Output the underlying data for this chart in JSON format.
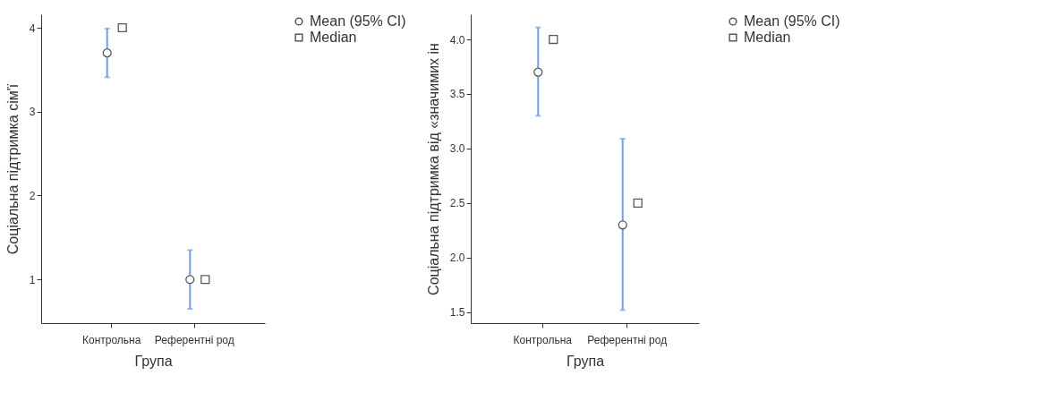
{
  "chart_data": [
    {
      "type": "scatter",
      "categories": [
        "Контрольна",
        "Референтні род"
      ],
      "xlabel": "Група",
      "ylabel": "Соціальна підтримка сім'ї",
      "ylim": [
        0.48,
        4.16
      ],
      "yticks": [
        1,
        2,
        3,
        4
      ],
      "grid": false,
      "legend": "right",
      "series": [
        {
          "name": "Mean (95% CI)",
          "color": "#595959",
          "marker": "circle",
          "values": [
            3.7,
            1.0
          ],
          "errors": [
            [
              3.41,
              3.99
            ],
            [
              0.65,
              1.35
            ]
          ]
        },
        {
          "name": "Median",
          "color": "#595959",
          "marker": "square",
          "values": [
            4,
            1
          ]
        }
      ]
    },
    {
      "type": "scatter",
      "categories": [
        "Контрольна",
        "Референтні род"
      ],
      "xlabel": "Група",
      "ylabel": "Соціальна підтримка від «значимих ін",
      "ylim": [
        1.4,
        4.23
      ],
      "yticks": [
        1.5,
        {
          "value": 2,
          "label": "2.0"
        },
        2.5,
        {
          "value": 3,
          "label": "3.0"
        },
        3.5,
        {
          "value": 4,
          "label": "4.0"
        }
      ],
      "grid": false,
      "legend": "right",
      "series": [
        {
          "name": "Mean (95% CI)",
          "color": "#595959",
          "marker": "circle",
          "values": [
            3.7,
            2.3
          ],
          "errors": [
            [
              3.3,
              4.11
            ],
            [
              1.52,
              3.09
            ]
          ]
        },
        {
          "name": "Median",
          "color": "#595959",
          "marker": "square",
          "values": [
            4.0,
            2.5
          ]
        }
      ]
    }
  ]
}
